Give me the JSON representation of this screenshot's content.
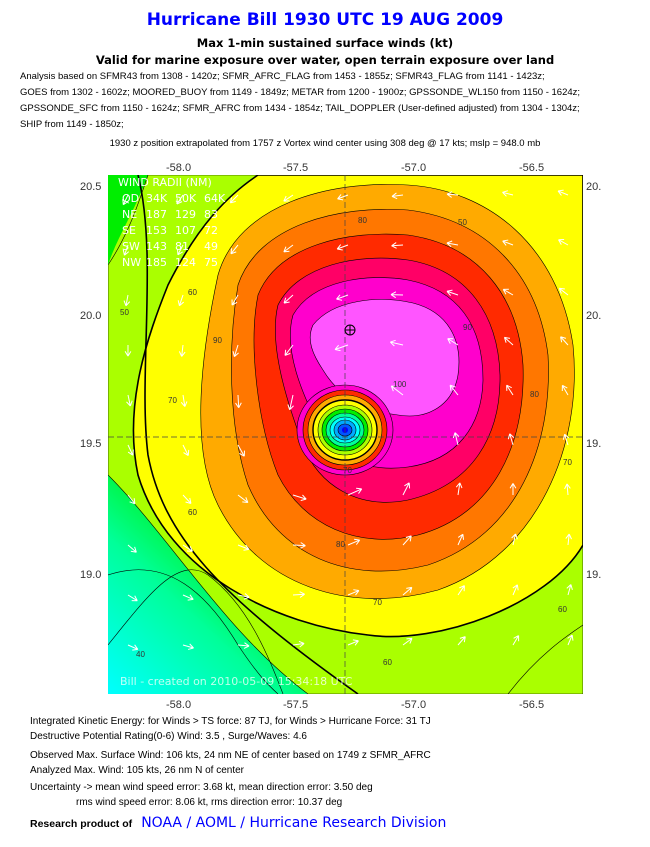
{
  "header": {
    "title": "Hurricane Bill 1930 UTC 19 AUG 2009",
    "subtitle1": "Max 1-min sustained surface winds (kt)",
    "subtitle2": "Valid for marine exposure over water, open terrain exposure over land",
    "analysis": [
      "Analysis based on SFMR43 from 1308 - 1420z; SFMR_AFRC_FLAG from 1453 - 1855z; SFMR43_FLAG from 1141 - 1423z;",
      "GOES from 1302 - 1602z; MOORED_BUOY from 1149 - 1849z; METAR from 1200 - 1900z; GPSSONDE_WL150 from 1150 - 1624z;",
      "GPSSONDE_SFC from 1150 - 1624z; SFMR_AFRC from 1434 - 1854z; TAIL_DOPPLER (User-defined adjusted) from 1304 - 1304z;",
      "SHIP from 1149 - 1850z;"
    ],
    "position_note": "1930 z position extrapolated from 1757 z Vortex wind center using 308 deg @ 17 kts; mslp = 948.0 mb"
  },
  "chart_data": {
    "type": "contour",
    "title": "Hurricane Bill 1930 UTC 19 AUG 2009",
    "x_ticks": [
      "-58.0",
      "-57.5",
      "-57.0",
      "-56.5"
    ],
    "y_ticks_left": [
      "20.5",
      "20.0",
      "19.5",
      "19.0"
    ],
    "y_ticks_right": [
      "20.",
      "20.",
      "19.",
      "19."
    ],
    "xlim": [
      -58.3,
      -56.3
    ],
    "ylim": [
      18.55,
      20.55
    ],
    "center": {
      "lon": -57.3,
      "lat": 19.55
    },
    "contour_labels": [
      "80",
      "90",
      "100",
      "60",
      "70",
      "50",
      "40",
      "90",
      "80",
      "70",
      "70",
      "60",
      "60",
      "80",
      "50",
      "70",
      "60"
    ],
    "colors": [
      "#00ffff",
      "#00ff99",
      "#00ee00",
      "#aaff00",
      "#ffff00",
      "#ffaa00",
      "#ff7700",
      "#ff2a00",
      "#ff0066",
      "#ff00cc",
      "#ff55ff"
    ],
    "wind_radii": {
      "title": "WIND RADII (NM)",
      "header": [
        "QD",
        "34K",
        "50K",
        "64K"
      ],
      "rows": [
        [
          "NE",
          "187",
          "129",
          "83"
        ],
        [
          "SE",
          "153",
          "107",
          "72"
        ],
        [
          "SW",
          "143",
          "81",
          "49"
        ],
        [
          "NW",
          "185",
          "124",
          "75"
        ]
      ]
    },
    "watermark": "Bill - created on 2010-05-09 15:34:18 UTC"
  },
  "footer": {
    "ike": "Integrated Kinetic Energy: for Winds > TS force: 87 TJ, for Winds > Hurricane Force: 31 TJ",
    "dpr": "Destructive Potential Rating(0-6)   Wind: 3.5 , Surge/Waves: 4.6",
    "observed": "Observed Max. Surface Wind: 106 kts, 24 nm NE of center based on 1749 z SFMR_AFRC",
    "analyzed": "Analyzed Max. Wind: 105 kts, 26 nm  N of center",
    "uncert1": "Uncertainty -> mean wind speed error: 3.68 kt, mean direction error: 3.50 deg",
    "uncert2": "rms wind speed error: 8.06 kt, rms direction error: 10.37 deg",
    "research_label": "Research product of",
    "org": "NOAA  /  AOML  /  Hurricane Research Division"
  }
}
